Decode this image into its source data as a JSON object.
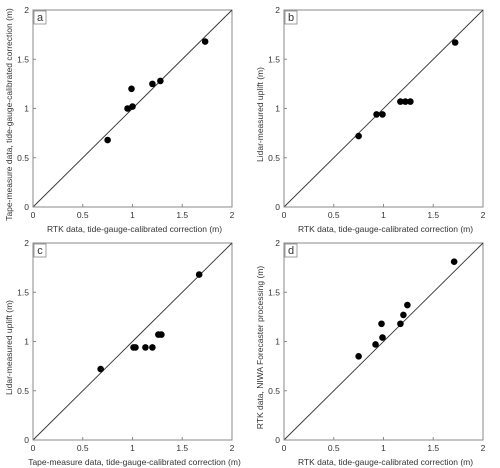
{
  "style": {
    "point_color": "#000000",
    "line_color": "#333333",
    "axis_color": "#888888",
    "text_color": "#333333"
  },
  "chart_data": [
    {
      "type": "scatter",
      "panel_label": "a",
      "xlabel": "RTK data, tide-gauge-calibrated correction (m)",
      "ylabel": "Tape-measure data, tide-gauge-calibrated correction (m)",
      "xlim": [
        0,
        2
      ],
      "ylim": [
        0,
        2
      ],
      "xticks": [
        "0",
        "0.5",
        "1",
        "1.5",
        "2"
      ],
      "yticks": [
        "0",
        "0.5",
        "1",
        "1.5",
        "2"
      ],
      "reference_line": "1:1",
      "grid": false,
      "points": [
        {
          "x": 0.75,
          "y": 0.68
        },
        {
          "x": 0.95,
          "y": 1.0
        },
        {
          "x": 0.99,
          "y": 1.2
        },
        {
          "x": 1.0,
          "y": 1.02
        },
        {
          "x": 1.2,
          "y": 1.25
        },
        {
          "x": 1.28,
          "y": 1.28
        },
        {
          "x": 1.73,
          "y": 1.68
        }
      ]
    },
    {
      "type": "scatter",
      "panel_label": "b",
      "xlabel": "RTK data, tide-gauge-calibrated correction (m)",
      "ylabel": "Lidar-measured uplift (m)",
      "xlim": [
        0,
        2
      ],
      "ylim": [
        0,
        2
      ],
      "xticks": [
        "0",
        "0.5",
        "1",
        "1.5",
        "2"
      ],
      "yticks": [
        "0",
        "0.5",
        "1",
        "1.5",
        "2"
      ],
      "reference_line": "1:1",
      "grid": false,
      "points": [
        {
          "x": 0.75,
          "y": 0.72
        },
        {
          "x": 0.93,
          "y": 0.94
        },
        {
          "x": 0.99,
          "y": 0.94
        },
        {
          "x": 1.17,
          "y": 1.07
        },
        {
          "x": 1.22,
          "y": 1.07
        },
        {
          "x": 1.27,
          "y": 1.07
        },
        {
          "x": 1.72,
          "y": 1.67
        }
      ]
    },
    {
      "type": "scatter",
      "panel_label": "c",
      "xlabel": "Tape-measure data, tide-gauge-calibrated correction (m)",
      "ylabel": "Lidar-measured uplift (m)",
      "xlim": [
        0,
        2
      ],
      "ylim": [
        0,
        2
      ],
      "xticks": [
        "0",
        "0.5",
        "1",
        "1.5",
        "2"
      ],
      "yticks": [
        "0",
        "0.5",
        "1",
        "1.5",
        "2"
      ],
      "reference_line": "1:1",
      "grid": false,
      "points": [
        {
          "x": 0.68,
          "y": 0.72
        },
        {
          "x": 1.01,
          "y": 0.94
        },
        {
          "x": 1.03,
          "y": 0.94
        },
        {
          "x": 1.13,
          "y": 0.94
        },
        {
          "x": 1.2,
          "y": 0.94
        },
        {
          "x": 1.26,
          "y": 1.07
        },
        {
          "x": 1.29,
          "y": 1.07
        },
        {
          "x": 1.67,
          "y": 1.68
        }
      ]
    },
    {
      "type": "scatter",
      "panel_label": "d",
      "xlabel": "RTK data, tide-gauge-calibrated correction (m)",
      "ylabel": "RTK data, NIWA Forecaster processing (m)",
      "xlim": [
        0,
        2
      ],
      "ylim": [
        0,
        2
      ],
      "xticks": [
        "0",
        "0.5",
        "1",
        "1.5",
        "2"
      ],
      "yticks": [
        "0",
        "0.5",
        "1",
        "1.5",
        "2"
      ],
      "reference_line": "1:1",
      "grid": false,
      "points": [
        {
          "x": 0.75,
          "y": 0.85
        },
        {
          "x": 0.92,
          "y": 0.97
        },
        {
          "x": 0.98,
          "y": 1.18
        },
        {
          "x": 0.99,
          "y": 1.04
        },
        {
          "x": 1.17,
          "y": 1.18
        },
        {
          "x": 1.2,
          "y": 1.27
        },
        {
          "x": 1.24,
          "y": 1.37
        },
        {
          "x": 1.71,
          "y": 1.81
        }
      ]
    }
  ]
}
